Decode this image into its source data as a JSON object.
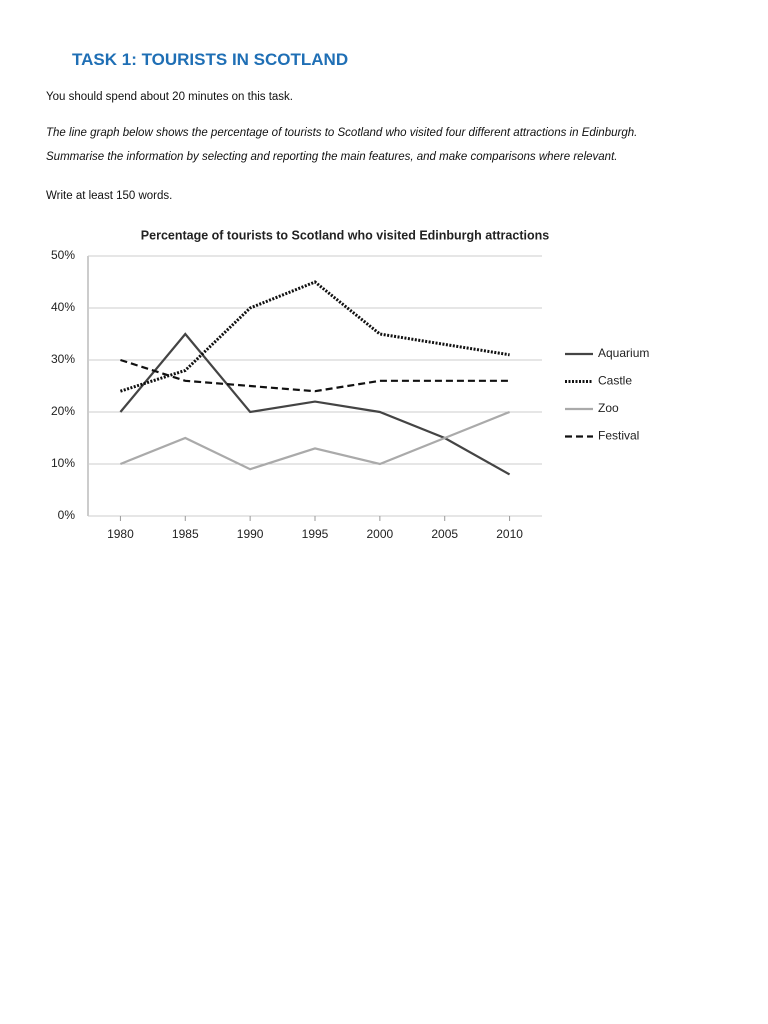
{
  "header": {
    "title": "TASK 1: TOURISTS IN SCOTLAND"
  },
  "instructions": [
    "You should spend about 20 minutes on this task.",
    "The line graph below shows the percentage of tourists to Scotland who visited four different attractions in Edinburgh.",
    "Summarise the information by selecting and reporting the main features, and make comparisons where relevant.",
    "Write at least 150 words."
  ],
  "chart_data": {
    "type": "line",
    "title": "Percentage of tourists to Scotland who visited Edinburgh attractions",
    "x": [
      1980,
      1985,
      1990,
      1995,
      2000,
      2005,
      2010
    ],
    "xlim": [
      1977.5,
      2012.5
    ],
    "xticks": [
      1980,
      1985,
      1990,
      1995,
      2000,
      2005,
      2010
    ],
    "ylim": [
      0,
      50
    ],
    "yticks": [
      {
        "value": 0,
        "label": "0%"
      },
      {
        "value": 10,
        "label": "10%"
      },
      {
        "value": 20,
        "label": "20%"
      },
      {
        "value": 30,
        "label": "30%"
      },
      {
        "value": 40,
        "label": "40%"
      },
      {
        "value": 50,
        "label": "50%"
      }
    ],
    "grid": true,
    "legend": "right",
    "series": [
      {
        "name": "Aquarium",
        "color": "#444444",
        "dash": "solid",
        "values": [
          20,
          35,
          20,
          22,
          20,
          15,
          8
        ]
      },
      {
        "name": "Castle",
        "color": "#111111",
        "dash": "dotted",
        "values": [
          24,
          28,
          40,
          45,
          35,
          33,
          31
        ]
      },
      {
        "name": "Zoo",
        "color": "#aaaaaa",
        "dash": "solid",
        "values": [
          10,
          15,
          9,
          13,
          10,
          15,
          20
        ]
      },
      {
        "name": "Festival",
        "color": "#111111",
        "dash": "dashed",
        "values": [
          30,
          26,
          25,
          24,
          26,
          26,
          26
        ]
      }
    ]
  }
}
